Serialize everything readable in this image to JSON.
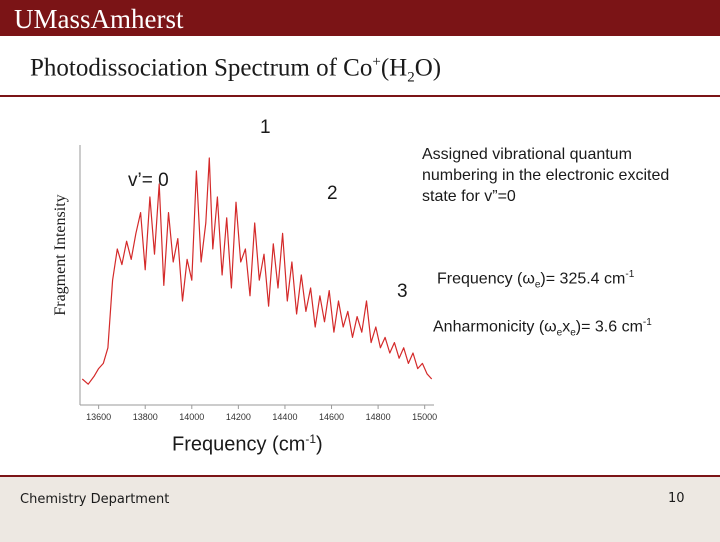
{
  "header": {
    "logo_text": "UMassAmherst",
    "banner_color": "#7b1416"
  },
  "slide": {
    "title_main": "Photodissociation Spectrum of Co",
    "title_sup": "+",
    "title_paren_open": "(H",
    "title_sub": "2",
    "title_paren_close": "O)"
  },
  "annotations": {
    "assigned_note": "Assigned vibrational quantum numbering in the electronic excited state for v”=0",
    "freq_prefix": "Frequency (ω",
    "freq_sub": "e",
    "freq_suffix": ")= 325.4 cm",
    "freq_sup": "-1",
    "anharm_prefix": "Anharmonicity (ω",
    "anharm_sub1": "e",
    "anharm_mid": "x",
    "anharm_sub2": "e",
    "anharm_suffix": ")= 3.6 cm",
    "anharm_sup": "-1"
  },
  "chart_data": {
    "type": "line",
    "ylabel": "Fragment Intensity",
    "xlabel_prefix": "Frequency (cm",
    "xlabel_sup": "-1",
    "xlabel_suffix": ")",
    "xlim": [
      13520,
      15040
    ],
    "ylim": [
      0,
      1
    ],
    "x_ticks": [
      13600,
      13800,
      14000,
      14200,
      14400,
      14600,
      14800,
      15000
    ],
    "line_color": "#d42a2a",
    "peak_labels": [
      {
        "text": "v’= 0",
        "x": 13740
      },
      {
        "text": "1",
        "x": 14070
      },
      {
        "text": "2",
        "x": 14400
      },
      {
        "text": "3",
        "x": 14720
      }
    ],
    "series": [
      {
        "x": [
          13530,
          13555,
          13580,
          13600,
          13620,
          13640,
          13660,
          13680,
          13700,
          13720,
          13740,
          13760,
          13780,
          13800,
          13820,
          13840,
          13860,
          13880,
          13900,
          13920,
          13940,
          13960,
          13980,
          14000,
          14020,
          14040,
          14060,
          14075,
          14090,
          14110,
          14130,
          14150,
          14170,
          14190,
          14210,
          14230,
          14250,
          14270,
          14290,
          14310,
          14330,
          14350,
          14370,
          14390,
          14410,
          14430,
          14450,
          14470,
          14490,
          14510,
          14530,
          14550,
          14570,
          14590,
          14610,
          14630,
          14650,
          14670,
          14690,
          14710,
          14730,
          14750,
          14770,
          14790,
          14810,
          14830,
          14850,
          14870,
          14890,
          14910,
          14930,
          14950,
          14970,
          14990,
          15010,
          15030
        ],
        "values": [
          0.1,
          0.08,
          0.11,
          0.14,
          0.16,
          0.22,
          0.48,
          0.6,
          0.54,
          0.63,
          0.56,
          0.66,
          0.74,
          0.52,
          0.8,
          0.58,
          0.85,
          0.46,
          0.74,
          0.55,
          0.64,
          0.4,
          0.56,
          0.48,
          0.9,
          0.55,
          0.7,
          0.95,
          0.6,
          0.8,
          0.5,
          0.72,
          0.45,
          0.78,
          0.55,
          0.6,
          0.42,
          0.7,
          0.48,
          0.58,
          0.38,
          0.62,
          0.45,
          0.66,
          0.4,
          0.55,
          0.35,
          0.5,
          0.36,
          0.45,
          0.3,
          0.42,
          0.32,
          0.44,
          0.28,
          0.4,
          0.3,
          0.36,
          0.26,
          0.34,
          0.28,
          0.4,
          0.24,
          0.3,
          0.22,
          0.26,
          0.2,
          0.24,
          0.18,
          0.22,
          0.16,
          0.2,
          0.14,
          0.16,
          0.12,
          0.1
        ]
      }
    ]
  },
  "footer": {
    "department": "Chemistry Department",
    "page_number": "10"
  }
}
